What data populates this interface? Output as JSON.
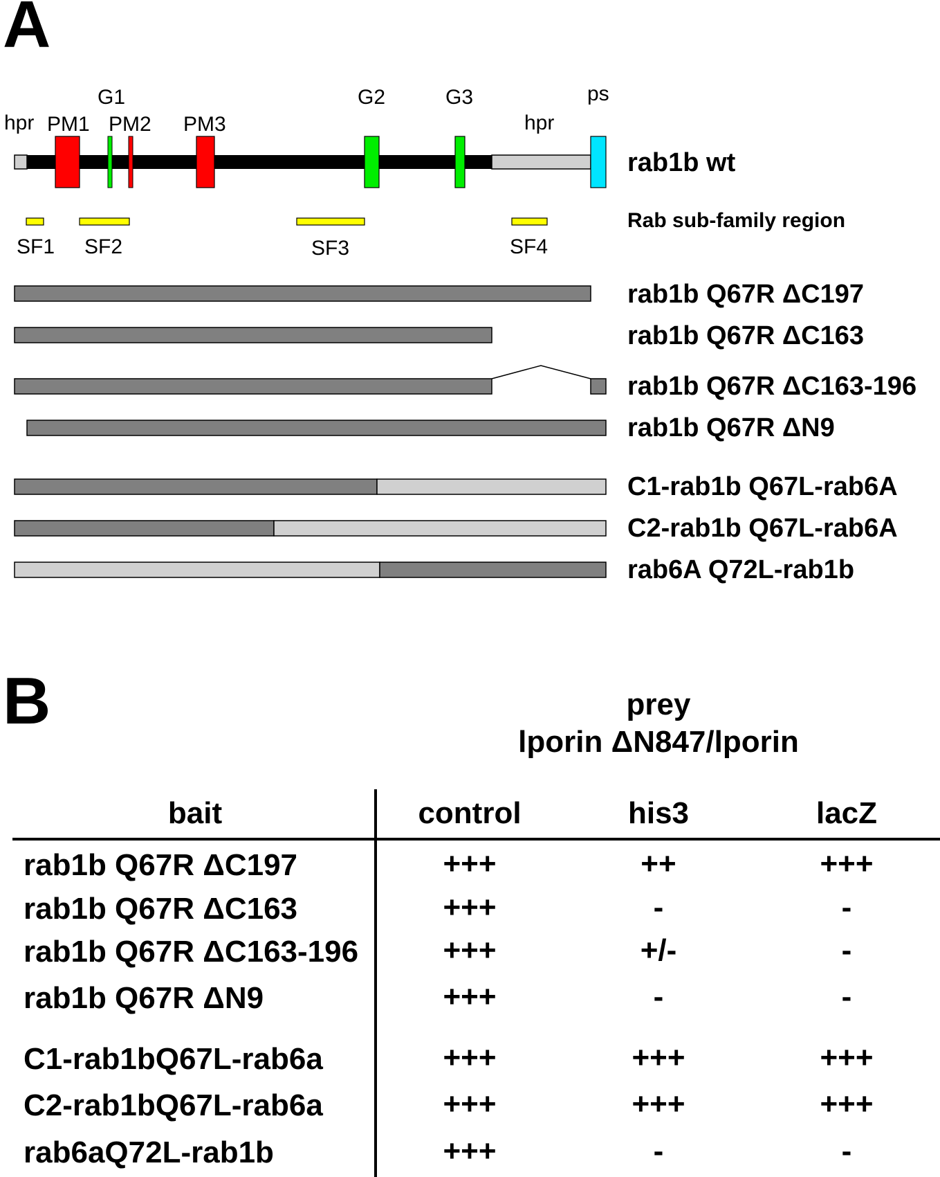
{
  "panel_a": {
    "letter": "A",
    "feature_labels": {
      "hpr_n": "hpr",
      "pm1": "PM1",
      "g1": "G1",
      "pm2": "PM2",
      "pm3": "PM3",
      "g2": "G2",
      "g3": "G3",
      "hpr_c": "hpr",
      "ps": "ps"
    },
    "wt_label": "rab1b wt",
    "subfamily_label": "Rab sub-family region",
    "sf_labels": [
      "SF1",
      "SF2",
      "SF3",
      "SF4"
    ],
    "constructs": [
      "rab1b Q67R ΔC197",
      "rab1b Q67R ΔC163",
      "rab1b Q67R ΔC163-196",
      "rab1b Q67R ΔN9",
      "C1-rab1b Q67L-rab6A",
      "C2-rab1b Q67L-rab6A",
      "rab6A Q72L-rab1b"
    ],
    "colors": {
      "black_domain": "#000000",
      "motif_pm": "#ff0000",
      "motif_g": "#00ee00",
      "hypervariable": "#d0d0d0",
      "prenylation": "#00e5ff",
      "subfamily": "#ffff00",
      "rab1b_segment": "#808080",
      "rab6a_segment": "#d0d0d0"
    }
  },
  "panel_b": {
    "letter": "B",
    "prey_line1": "prey",
    "prey_line2": "lporin ΔN847/lporin",
    "headers": [
      "bait",
      "control",
      "his3",
      "lacZ"
    ],
    "rows": [
      {
        "bait": "rab1b Q67R ΔC197",
        "control": "+++",
        "his3": "++",
        "lacZ": "+++"
      },
      {
        "bait": "rab1b Q67R ΔC163",
        "control": "+++",
        "his3": "-",
        "lacZ": "-"
      },
      {
        "bait": "rab1b Q67R ΔC163-196",
        "control": "+++",
        "his3": "+/-",
        "lacZ": "-"
      },
      {
        "bait": "rab1b Q67R ΔN9",
        "control": "+++",
        "his3": "-",
        "lacZ": "-"
      },
      {
        "bait": "C1-rab1bQ67L-rab6a",
        "control": "+++",
        "his3": "+++",
        "lacZ": "+++"
      },
      {
        "bait": "C2-rab1bQ67L-rab6a",
        "control": "+++",
        "his3": "+++",
        "lacZ": "+++"
      },
      {
        "bait": "rab6aQ72L-rab1b",
        "control": "+++",
        "his3": "-",
        "lacZ": "-"
      }
    ]
  }
}
